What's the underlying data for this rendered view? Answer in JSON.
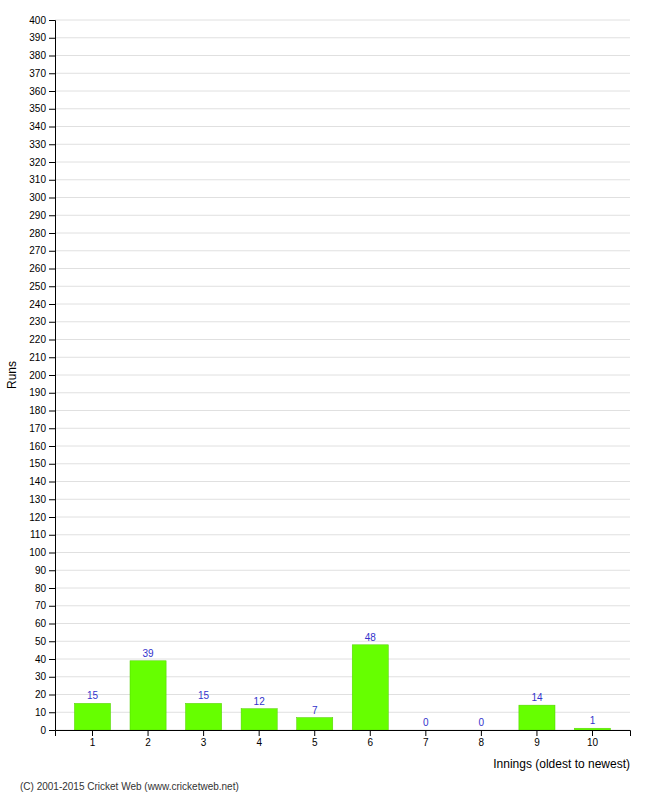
{
  "chart_data": {
    "type": "bar",
    "categories": [
      "1",
      "2",
      "3",
      "4",
      "5",
      "6",
      "7",
      "8",
      "9",
      "10"
    ],
    "values": [
      15,
      39,
      15,
      12,
      7,
      48,
      0,
      0,
      14,
      1
    ],
    "color": "#66ff00",
    "ylabel": "Runs",
    "xlabel": "Innings (oldest to newest)",
    "annotations": [
      "(C) 2001-2015 Cricket Web (www.cricketweb.net)"
    ],
    "ylim": [
      0,
      400
    ],
    "yticks": [
      0,
      10,
      20,
      30,
      40,
      50,
      60,
      70,
      80,
      90,
      100,
      110,
      120,
      130,
      140,
      150,
      160,
      170,
      180,
      190,
      200,
      210,
      220,
      230,
      240,
      250,
      260,
      270,
      280,
      290,
      300,
      310,
      320,
      330,
      340,
      350,
      360,
      370,
      380,
      390,
      400
    ],
    "grid": true,
    "data_labels": true
  }
}
